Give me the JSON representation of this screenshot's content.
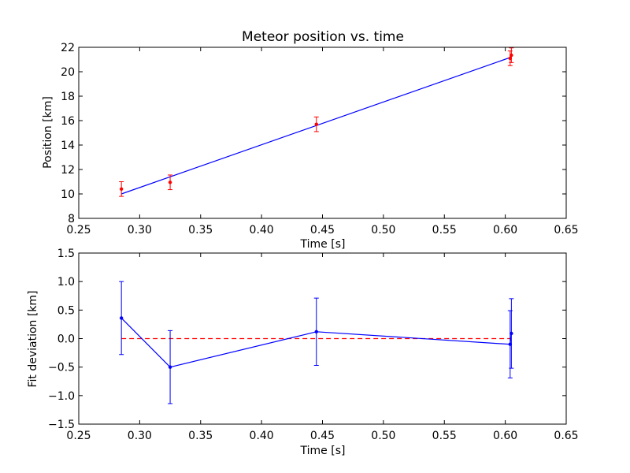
{
  "chart_data": [
    {
      "type": "scatter",
      "title": "Meteor position vs. time",
      "xlabel": "Time [s]",
      "ylabel": "Position [km]",
      "xlim": [
        0.25,
        0.65
      ],
      "ylim": [
        8,
        22
      ],
      "xticks": [
        "0.25",
        "0.30",
        "0.35",
        "0.40",
        "0.45",
        "0.50",
        "0.55",
        "0.60",
        "0.65"
      ],
      "yticks": [
        "8",
        "10",
        "12",
        "14",
        "16",
        "18",
        "20",
        "22"
      ],
      "grid": false,
      "colors": {
        "points": "#ff0000",
        "fit": "#0000ff"
      },
      "points": [
        {
          "x": 0.285,
          "y": 10.4,
          "err": 0.6
        },
        {
          "x": 0.325,
          "y": 10.95,
          "err": 0.6
        },
        {
          "x": 0.445,
          "y": 15.7,
          "err": 0.6
        },
        {
          "x": 0.604,
          "y": 21.1,
          "err": 0.6
        },
        {
          "x": 0.605,
          "y": 21.35,
          "err": 0.6
        }
      ],
      "fit_line": [
        {
          "x": 0.285,
          "y": 10.0
        },
        {
          "x": 0.605,
          "y": 21.2
        }
      ]
    },
    {
      "type": "line",
      "title": "",
      "xlabel": "Time [s]",
      "ylabel": "Fit deviation [km]",
      "xlim": [
        0.25,
        0.65
      ],
      "ylim": [
        -1.5,
        1.5
      ],
      "xticks": [
        "0.25",
        "0.30",
        "0.35",
        "0.40",
        "0.45",
        "0.50",
        "0.55",
        "0.60",
        "0.65"
      ],
      "yticks": [
        "−1.5",
        "−1.0",
        "−0.5",
        "0.0",
        "0.5",
        "1.0",
        "1.5"
      ],
      "grid": false,
      "colors": {
        "series": "#0000ff",
        "zero_line": "#ff0000"
      },
      "points": [
        {
          "x": 0.285,
          "y": 0.36,
          "err": 0.64
        },
        {
          "x": 0.325,
          "y": -0.5,
          "err": 0.64
        },
        {
          "x": 0.445,
          "y": 0.12,
          "err": 0.59
        },
        {
          "x": 0.604,
          "y": -0.1,
          "err": 0.59
        },
        {
          "x": 0.605,
          "y": 0.09,
          "err": 0.61
        }
      ],
      "reference_line": {
        "y": 0.0,
        "x": [
          0.285,
          0.605
        ],
        "style": "dashed"
      }
    }
  ]
}
